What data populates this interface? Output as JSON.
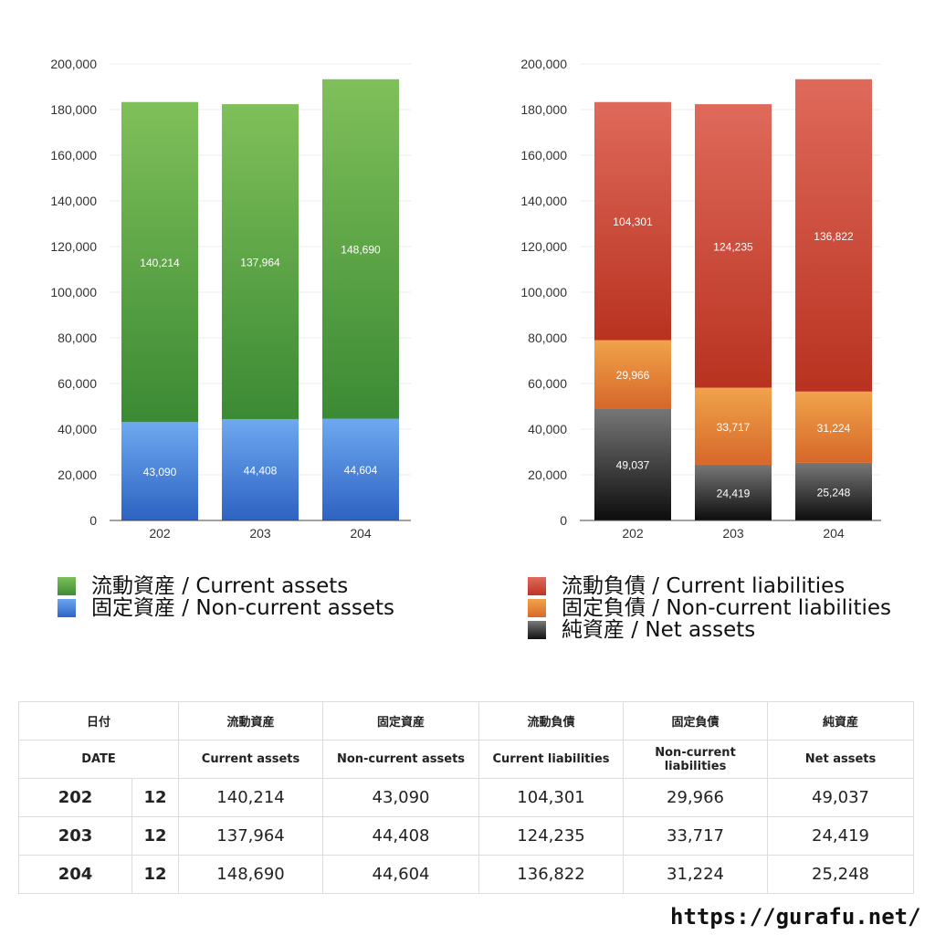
{
  "chart_data": [
    {
      "type": "bar",
      "stacked": true,
      "categories": [
        "202",
        "203",
        "204"
      ],
      "ylim": [
        0,
        200000
      ],
      "yticks": [
        0,
        20000,
        40000,
        60000,
        80000,
        100000,
        120000,
        140000,
        160000,
        180000,
        200000
      ],
      "ytick_labels": [
        "0",
        "20,000",
        "40,000",
        "60,000",
        "80,000",
        "100,000",
        "120,000",
        "140,000",
        "160,000",
        "180,000",
        "200,000"
      ],
      "grid": true,
      "series": [
        {
          "name": "固定資産 / Non-current assets",
          "values": [
            43090,
            44408,
            44604
          ],
          "labels": [
            "43,090",
            "44,408",
            "44,604"
          ],
          "color": "#4a84dc"
        },
        {
          "name": "流動資産 / Current assets",
          "values": [
            140214,
            137964,
            148690
          ],
          "labels": [
            "140,214",
            "137,964",
            "148,690"
          ],
          "color": "#5aa546"
        }
      ]
    },
    {
      "type": "bar",
      "stacked": true,
      "categories": [
        "202",
        "203",
        "204"
      ],
      "ylim": [
        0,
        200000
      ],
      "yticks": [
        0,
        20000,
        40000,
        60000,
        80000,
        100000,
        120000,
        140000,
        160000,
        180000,
        200000
      ],
      "ytick_labels": [
        "0",
        "20,000",
        "40,000",
        "60,000",
        "80,000",
        "100,000",
        "120,000",
        "140,000",
        "160,000",
        "180,000",
        "200,000"
      ],
      "grid": true,
      "series": [
        {
          "name": "純資産 / Net assets",
          "values": [
            49037,
            24419,
            25248
          ],
          "labels": [
            "49,037",
            "24,419",
            "25,248"
          ],
          "color": "#333333"
        },
        {
          "name": "固定負債 / Non-current liabilities",
          "values": [
            29966,
            33717,
            31224
          ],
          "labels": [
            "29,966",
            "33,717",
            "31,224"
          ],
          "color": "#e38a3a"
        },
        {
          "name": "流動負債 / Current liabilities",
          "values": [
            104301,
            124235,
            136822
          ],
          "labels": [
            "104,301",
            "124,235",
            "136,822"
          ],
          "color": "#d04a38"
        }
      ]
    }
  ],
  "legend_left": {
    "current_assets": "流動資産 / Current assets",
    "noncurrent_assets": "固定資産 / Non-current assets"
  },
  "legend_right": {
    "current_liabilities": "流動負債 / Current liabilities",
    "noncurrent_liabilities": "固定負債 / Non-current liabilities",
    "net_assets": "純資産 / Net assets"
  },
  "table": {
    "header_jp": [
      "日付",
      "流動資産",
      "固定資産",
      "流動負債",
      "固定負債",
      "純資産"
    ],
    "header_en": [
      "DATE",
      "Current assets",
      "Non-current assets",
      "Current liabilities",
      "Non-current liabilities",
      "Net assets"
    ],
    "rows": [
      {
        "year": "202",
        "month": "12",
        "values": [
          "140,214",
          "43,090",
          "104,301",
          "29,966",
          "49,037"
        ]
      },
      {
        "year": "203",
        "month": "12",
        "values": [
          "137,964",
          "44,408",
          "124,235",
          "33,717",
          "24,419"
        ]
      },
      {
        "year": "204",
        "month": "12",
        "values": [
          "148,690",
          "44,604",
          "136,822",
          "31,224",
          "25,248"
        ]
      }
    ]
  },
  "footer": {
    "url": "https://gurafu.net/"
  }
}
